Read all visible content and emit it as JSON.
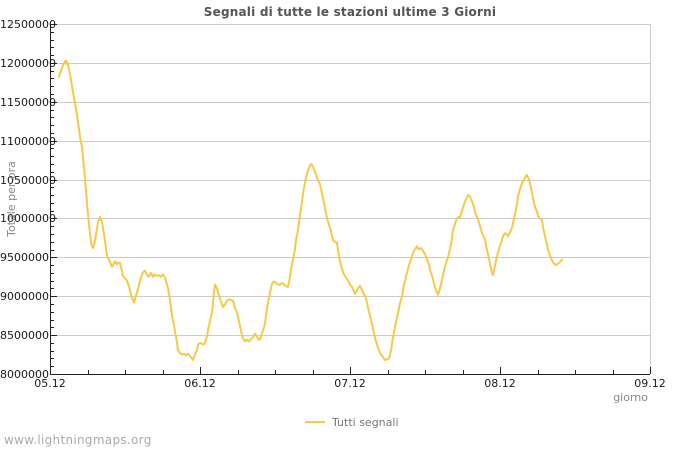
{
  "page": {
    "footer": "www.lightningmaps.org"
  },
  "colors": {
    "line": "#F6C94A",
    "grid": "#CCCCCC",
    "frame_light": "#CCCCCC",
    "axis": "#222222",
    "title_text": "#555555",
    "tick_text": "#1A1A1A",
    "muted_text": "#888888",
    "legend_text": "#777777",
    "watermark_text": "#AAAAAA"
  },
  "chart_data": {
    "type": "line",
    "title": "Segnali di tutte le stazioni ultime 3 Giorni",
    "xlabel": "giorno",
    "ylabel": "Totale per ora",
    "grid": "horizontal-only",
    "legend_position": "bottom-center",
    "legend": [
      {
        "name": "Tutti segnali",
        "color": "#F6C94A"
      }
    ],
    "x_axis": {
      "unit": "day (dd.mm)",
      "range_days": [
        0,
        4
      ],
      "major_ticks": [
        {
          "day": 0,
          "label": "05.12"
        },
        {
          "day": 1,
          "label": "06.12"
        },
        {
          "day": 2,
          "label": "07.12"
        },
        {
          "day": 3,
          "label": "08.12"
        },
        {
          "day": 4,
          "label": "09.12"
        }
      ],
      "minor_step_days": 0.25
    },
    "y_axis": {
      "unit": "signals per hour",
      "range": [
        8000000,
        12500000
      ],
      "major_step": 500000,
      "minor_step": 100000,
      "tick_labels": [
        {
          "value_millions": 12.5,
          "label": "12500000"
        },
        {
          "value_millions": 12.0,
          "label": "12000000"
        },
        {
          "value_millions": 11.5,
          "label": "11500000"
        },
        {
          "value_millions": 11.0,
          "label": "11000000"
        },
        {
          "value_millions": 10.5,
          "label": "10500000"
        },
        {
          "value_millions": 10.0,
          "label": "10000000"
        },
        {
          "value_millions": 9.5,
          "label": "9500000"
        },
        {
          "value_millions": 9.0,
          "label": "9000000"
        },
        {
          "value_millions": 8.5,
          "label": "8500000"
        },
        {
          "value_millions": 8.0,
          "label": "8000000"
        }
      ]
    },
    "series": [
      {
        "name": "Tutti segnali",
        "value_scale": 1000000,
        "points_day_value_millions": [
          [
            0.06,
            11.82
          ],
          [
            0.073,
            11.9
          ],
          [
            0.087,
            11.97
          ],
          [
            0.1,
            12.02
          ],
          [
            0.103,
            11.99
          ],
          [
            0.107,
            12.03
          ],
          [
            0.113,
            12.0
          ],
          [
            0.12,
            11.97
          ],
          [
            0.133,
            11.86
          ],
          [
            0.153,
            11.62
          ],
          [
            0.167,
            11.48
          ],
          [
            0.18,
            11.33
          ],
          [
            0.193,
            11.15
          ],
          [
            0.2,
            11.05
          ],
          [
            0.207,
            10.97
          ],
          [
            0.213,
            10.93
          ],
          [
            0.22,
            10.78
          ],
          [
            0.233,
            10.52
          ],
          [
            0.247,
            10.2
          ],
          [
            0.26,
            9.92
          ],
          [
            0.267,
            9.8
          ],
          [
            0.273,
            9.7
          ],
          [
            0.28,
            9.64
          ],
          [
            0.287,
            9.62
          ],
          [
            0.293,
            9.65
          ],
          [
            0.3,
            9.72
          ],
          [
            0.307,
            9.8
          ],
          [
            0.313,
            9.88
          ],
          [
            0.32,
            9.95
          ],
          [
            0.333,
            10.02
          ],
          [
            0.347,
            9.95
          ],
          [
            0.36,
            9.8
          ],
          [
            0.373,
            9.62
          ],
          [
            0.38,
            9.52
          ],
          [
            0.393,
            9.47
          ],
          [
            0.4,
            9.44
          ],
          [
            0.413,
            9.38
          ],
          [
            0.427,
            9.42
          ],
          [
            0.433,
            9.45
          ],
          [
            0.447,
            9.41
          ],
          [
            0.453,
            9.43
          ],
          [
            0.467,
            9.43
          ],
          [
            0.48,
            9.32
          ],
          [
            0.487,
            9.26
          ],
          [
            0.5,
            9.23
          ],
          [
            0.513,
            9.2
          ],
          [
            0.527,
            9.12
          ],
          [
            0.54,
            9.02
          ],
          [
            0.553,
            8.95
          ],
          [
            0.56,
            8.92
          ],
          [
            0.573,
            9.0
          ],
          [
            0.587,
            9.1
          ],
          [
            0.6,
            9.2
          ],
          [
            0.613,
            9.28
          ],
          [
            0.627,
            9.32
          ],
          [
            0.633,
            9.33
          ],
          [
            0.647,
            9.27
          ],
          [
            0.66,
            9.25
          ],
          [
            0.673,
            9.3
          ],
          [
            0.687,
            9.25
          ],
          [
            0.7,
            9.28
          ],
          [
            0.713,
            9.26
          ],
          [
            0.727,
            9.27
          ],
          [
            0.74,
            9.25
          ],
          [
            0.753,
            9.28
          ],
          [
            0.767,
            9.24
          ],
          [
            0.773,
            9.2
          ],
          [
            0.787,
            9.1
          ],
          [
            0.8,
            8.95
          ],
          [
            0.807,
            8.85
          ],
          [
            0.813,
            8.76
          ],
          [
            0.827,
            8.62
          ],
          [
            0.833,
            8.55
          ],
          [
            0.84,
            8.48
          ],
          [
            0.847,
            8.4
          ],
          [
            0.853,
            8.31
          ],
          [
            0.867,
            8.27
          ],
          [
            0.88,
            8.25
          ],
          [
            0.893,
            8.26
          ],
          [
            0.907,
            8.24
          ],
          [
            0.92,
            8.26
          ],
          [
            0.933,
            8.23
          ],
          [
            0.947,
            8.2
          ],
          [
            0.953,
            8.18
          ],
          [
            0.967,
            8.25
          ],
          [
            0.98,
            8.31
          ],
          [
            0.987,
            8.38
          ],
          [
            1.0,
            8.4
          ],
          [
            1.013,
            8.39
          ],
          [
            1.027,
            8.38
          ],
          [
            1.033,
            8.4
          ],
          [
            1.047,
            8.48
          ],
          [
            1.053,
            8.56
          ],
          [
            1.067,
            8.68
          ],
          [
            1.08,
            8.8
          ],
          [
            1.087,
            8.92
          ],
          [
            1.093,
            9.05
          ],
          [
            1.1,
            9.15
          ],
          [
            1.113,
            9.1
          ],
          [
            1.127,
            9.0
          ],
          [
            1.14,
            8.93
          ],
          [
            1.153,
            8.86
          ],
          [
            1.167,
            8.9
          ],
          [
            1.18,
            8.94
          ],
          [
            1.193,
            8.96
          ],
          [
            1.207,
            8.95
          ],
          [
            1.22,
            8.94
          ],
          [
            1.233,
            8.85
          ],
          [
            1.247,
            8.78
          ],
          [
            1.26,
            8.68
          ],
          [
            1.267,
            8.62
          ],
          [
            1.28,
            8.5
          ],
          [
            1.287,
            8.46
          ],
          [
            1.3,
            8.42
          ],
          [
            1.313,
            8.44
          ],
          [
            1.327,
            8.42
          ],
          [
            1.34,
            8.45
          ],
          [
            1.353,
            8.47
          ],
          [
            1.367,
            8.52
          ],
          [
            1.38,
            8.48
          ],
          [
            1.393,
            8.44
          ],
          [
            1.4,
            8.44
          ],
          [
            1.413,
            8.52
          ],
          [
            1.427,
            8.6
          ],
          [
            1.433,
            8.65
          ],
          [
            1.447,
            8.85
          ],
          [
            1.453,
            8.93
          ],
          [
            1.467,
            9.05
          ],
          [
            1.48,
            9.16
          ],
          [
            1.493,
            9.19
          ],
          [
            1.507,
            9.17
          ],
          [
            1.52,
            9.15
          ],
          [
            1.533,
            9.15
          ],
          [
            1.547,
            9.17
          ],
          [
            1.56,
            9.15
          ],
          [
            1.573,
            9.13
          ],
          [
            1.587,
            9.12
          ],
          [
            1.6,
            9.25
          ],
          [
            1.607,
            9.35
          ],
          [
            1.62,
            9.47
          ],
          [
            1.633,
            9.6
          ],
          [
            1.64,
            9.72
          ],
          [
            1.653,
            9.85
          ],
          [
            1.667,
            10.05
          ],
          [
            1.68,
            10.22
          ],
          [
            1.693,
            10.4
          ],
          [
            1.707,
            10.52
          ],
          [
            1.72,
            10.62
          ],
          [
            1.733,
            10.68
          ],
          [
            1.74,
            10.7
          ],
          [
            1.753,
            10.67
          ],
          [
            1.767,
            10.6
          ],
          [
            1.78,
            10.52
          ],
          [
            1.793,
            10.47
          ],
          [
            1.8,
            10.44
          ],
          [
            1.813,
            10.32
          ],
          [
            1.827,
            10.2
          ],
          [
            1.833,
            10.14
          ],
          [
            1.847,
            10.0
          ],
          [
            1.86,
            9.92
          ],
          [
            1.867,
            9.88
          ],
          [
            1.88,
            9.78
          ],
          [
            1.887,
            9.72
          ],
          [
            1.9,
            9.7
          ],
          [
            1.913,
            9.69
          ],
          [
            1.92,
            9.6
          ],
          [
            1.933,
            9.45
          ],
          [
            1.947,
            9.35
          ],
          [
            1.96,
            9.28
          ],
          [
            1.973,
            9.24
          ],
          [
            1.987,
            9.2
          ],
          [
            2.0,
            9.15
          ],
          [
            2.013,
            9.12
          ],
          [
            2.027,
            9.06
          ],
          [
            2.033,
            9.03
          ],
          [
            2.047,
            9.08
          ],
          [
            2.06,
            9.12
          ],
          [
            2.067,
            9.13
          ],
          [
            2.08,
            9.08
          ],
          [
            2.093,
            9.03
          ],
          [
            2.107,
            8.97
          ],
          [
            2.113,
            8.92
          ],
          [
            2.127,
            8.8
          ],
          [
            2.14,
            8.7
          ],
          [
            2.147,
            8.64
          ],
          [
            2.16,
            8.52
          ],
          [
            2.173,
            8.42
          ],
          [
            2.18,
            8.38
          ],
          [
            2.193,
            8.3
          ],
          [
            2.207,
            8.25
          ],
          [
            2.22,
            8.22
          ],
          [
            2.233,
            8.18
          ],
          [
            2.247,
            8.19
          ],
          [
            2.26,
            8.2
          ],
          [
            2.273,
            8.3
          ],
          [
            2.287,
            8.48
          ],
          [
            2.3,
            8.6
          ],
          [
            2.313,
            8.73
          ],
          [
            2.327,
            8.85
          ],
          [
            2.333,
            8.91
          ],
          [
            2.347,
            9.0
          ],
          [
            2.36,
            9.15
          ],
          [
            2.373,
            9.25
          ],
          [
            2.38,
            9.3
          ],
          [
            2.393,
            9.4
          ],
          [
            2.407,
            9.48
          ],
          [
            2.42,
            9.56
          ],
          [
            2.433,
            9.6
          ],
          [
            2.447,
            9.64
          ],
          [
            2.46,
            9.6
          ],
          [
            2.473,
            9.62
          ],
          [
            2.487,
            9.58
          ],
          [
            2.5,
            9.54
          ],
          [
            2.513,
            9.48
          ],
          [
            2.527,
            9.4
          ],
          [
            2.533,
            9.34
          ],
          [
            2.547,
            9.26
          ],
          [
            2.56,
            9.16
          ],
          [
            2.573,
            9.08
          ],
          [
            2.587,
            9.02
          ],
          [
            2.6,
            9.1
          ],
          [
            2.613,
            9.2
          ],
          [
            2.62,
            9.28
          ],
          [
            2.633,
            9.38
          ],
          [
            2.647,
            9.46
          ],
          [
            2.66,
            9.55
          ],
          [
            2.667,
            9.61
          ],
          [
            2.68,
            9.74
          ],
          [
            2.687,
            9.85
          ],
          [
            2.7,
            9.93
          ],
          [
            2.713,
            10.0
          ],
          [
            2.727,
            10.02
          ],
          [
            2.733,
            10.01
          ],
          [
            2.747,
            10.1
          ],
          [
            2.76,
            10.18
          ],
          [
            2.773,
            10.25
          ],
          [
            2.787,
            10.3
          ],
          [
            2.8,
            10.28
          ],
          [
            2.813,
            10.22
          ],
          [
            2.827,
            10.14
          ],
          [
            2.84,
            10.05
          ],
          [
            2.853,
            9.99
          ],
          [
            2.867,
            9.9
          ],
          [
            2.88,
            9.81
          ],
          [
            2.893,
            9.76
          ],
          [
            2.9,
            9.73
          ],
          [
            2.913,
            9.6
          ],
          [
            2.927,
            9.48
          ],
          [
            2.94,
            9.35
          ],
          [
            2.953,
            9.27
          ],
          [
            2.967,
            9.4
          ],
          [
            2.98,
            9.52
          ],
          [
            2.993,
            9.6
          ],
          [
            3.0,
            9.65
          ],
          [
            3.013,
            9.72
          ],
          [
            3.02,
            9.77
          ],
          [
            3.033,
            9.81
          ],
          [
            3.047,
            9.79
          ],
          [
            3.053,
            9.77
          ],
          [
            3.067,
            9.82
          ],
          [
            3.08,
            9.88
          ],
          [
            3.087,
            9.94
          ],
          [
            3.1,
            10.05
          ],
          [
            3.113,
            10.18
          ],
          [
            3.12,
            10.28
          ],
          [
            3.133,
            10.38
          ],
          [
            3.147,
            10.45
          ],
          [
            3.16,
            10.5
          ],
          [
            3.173,
            10.55
          ],
          [
            3.18,
            10.56
          ],
          [
            3.193,
            10.5
          ],
          [
            3.2,
            10.45
          ],
          [
            3.213,
            10.33
          ],
          [
            3.22,
            10.26
          ],
          [
            3.233,
            10.15
          ],
          [
            3.247,
            10.09
          ],
          [
            3.253,
            10.03
          ],
          [
            3.267,
            10.0
          ],
          [
            3.28,
            9.98
          ],
          [
            3.287,
            9.89
          ],
          [
            3.3,
            9.77
          ],
          [
            3.313,
            9.66
          ],
          [
            3.32,
            9.6
          ],
          [
            3.333,
            9.52
          ],
          [
            3.347,
            9.46
          ],
          [
            3.36,
            9.42
          ],
          [
            3.373,
            9.4
          ],
          [
            3.387,
            9.42
          ],
          [
            3.4,
            9.44
          ],
          [
            3.413,
            9.47
          ]
        ]
      }
    ]
  }
}
